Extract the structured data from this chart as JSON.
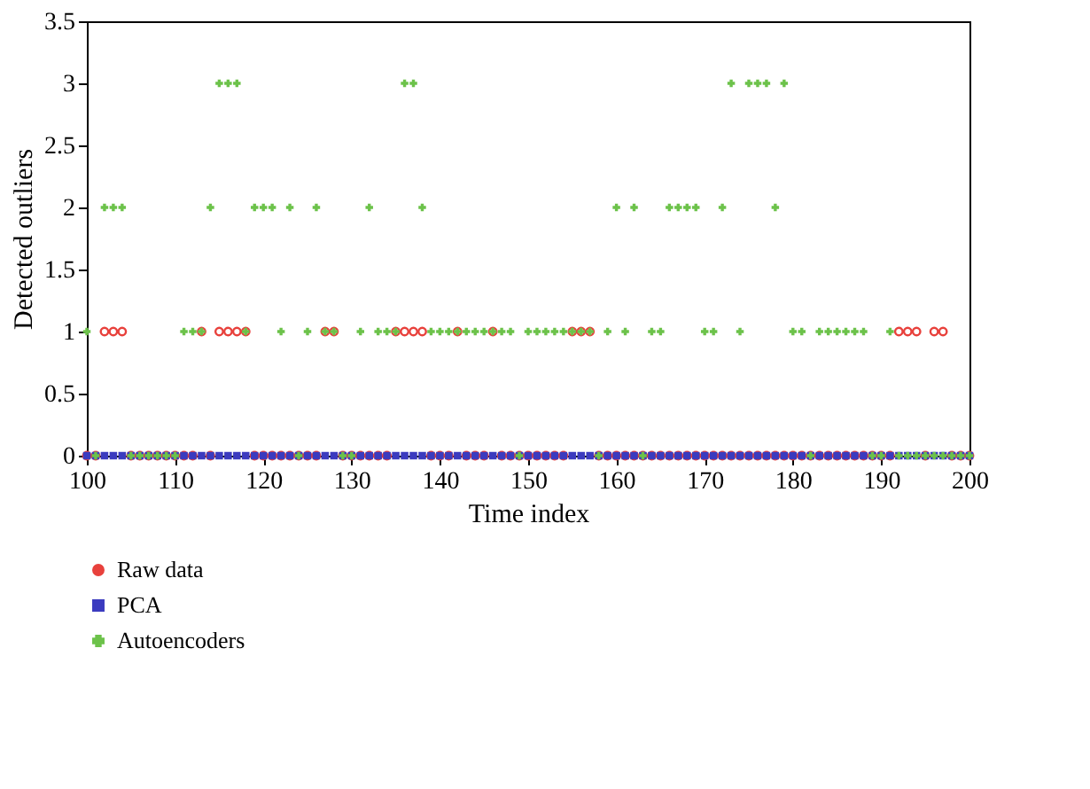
{
  "chart_data": {
    "type": "scatter",
    "xlabel": "Time index",
    "ylabel": "Detected outliers",
    "x": [
      100,
      101,
      102,
      103,
      104,
      105,
      106,
      107,
      108,
      109,
      110,
      111,
      112,
      113,
      114,
      115,
      116,
      117,
      118,
      119,
      120,
      121,
      122,
      123,
      124,
      125,
      126,
      127,
      128,
      129,
      130,
      131,
      132,
      133,
      134,
      135,
      136,
      137,
      138,
      139,
      140,
      141,
      142,
      143,
      144,
      145,
      146,
      147,
      148,
      149,
      150,
      151,
      152,
      153,
      154,
      155,
      156,
      157,
      158,
      159,
      160,
      161,
      162,
      163,
      164,
      165,
      166,
      167,
      168,
      169,
      170,
      171,
      172,
      173,
      174,
      175,
      176,
      177,
      178,
      179,
      180,
      181,
      182,
      183,
      184,
      185,
      186,
      187,
      188,
      189,
      190,
      191,
      192,
      193,
      194,
      195,
      196,
      197,
      198,
      199,
      200
    ],
    "series": [
      {
        "name": "Raw data",
        "color": "#e8413c",
        "marker": "circle",
        "values": [
          0,
          0,
          1,
          1,
          1,
          0,
          0,
          0,
          0,
          0,
          0,
          0,
          0,
          1,
          0,
          1,
          1,
          1,
          1,
          0,
          0,
          0,
          0,
          0,
          0,
          0,
          0,
          1,
          1,
          0,
          0,
          0,
          0,
          0,
          0,
          1,
          1,
          1,
          1,
          0,
          0,
          0,
          1,
          0,
          0,
          0,
          1,
          0,
          0,
          0,
          0,
          0,
          0,
          0,
          0,
          1,
          1,
          1,
          0,
          0,
          0,
          0,
          0,
          0,
          0,
          0,
          0,
          0,
          0,
          0,
          0,
          0,
          0,
          0,
          0,
          0,
          0,
          0,
          0,
          0,
          0,
          0,
          0,
          0,
          0,
          0,
          0,
          0,
          0,
          0,
          0,
          0,
          1,
          1,
          1,
          0,
          1,
          1,
          0,
          0,
          0
        ]
      },
      {
        "name": "PCA",
        "color": "#3b3bbf",
        "marker": "square",
        "values": [
          0,
          0,
          0,
          0,
          0,
          0,
          0,
          0,
          0,
          0,
          0,
          0,
          0,
          0,
          0,
          0,
          0,
          0,
          0,
          0,
          0,
          0,
          0,
          0,
          0,
          0,
          0,
          0,
          0,
          0,
          0,
          0,
          0,
          0,
          0,
          0,
          0,
          0,
          0,
          0,
          0,
          0,
          0,
          0,
          0,
          0,
          0,
          0,
          0,
          0,
          0,
          0,
          0,
          0,
          0,
          0,
          0,
          0,
          0,
          0,
          0,
          0,
          0,
          0,
          0,
          0,
          0,
          0,
          0,
          0,
          0,
          0,
          0,
          0,
          0,
          0,
          0,
          0,
          0,
          0,
          0,
          0,
          0,
          0,
          0,
          0,
          0,
          0,
          0,
          0,
          0,
          0,
          0,
          0,
          0,
          0,
          0,
          0,
          0,
          0,
          0
        ]
      },
      {
        "name": "Autoencoders",
        "color": "#6cc24a",
        "marker": "cross",
        "values": [
          1,
          0,
          2,
          2,
          2,
          0,
          0,
          0,
          0,
          0,
          0,
          1,
          1,
          1,
          2,
          3,
          3,
          3,
          1,
          2,
          2,
          2,
          1,
          2,
          0,
          1,
          2,
          1,
          1,
          0,
          0,
          1,
          2,
          1,
          1,
          1,
          3,
          3,
          2,
          1,
          1,
          1,
          1,
          1,
          1,
          1,
          1,
          1,
          1,
          0,
          1,
          1,
          1,
          1,
          1,
          1,
          1,
          1,
          0,
          1,
          2,
          1,
          2,
          0,
          1,
          1,
          2,
          2,
          2,
          2,
          1,
          1,
          2,
          3,
          1,
          3,
          3,
          3,
          2,
          3,
          1,
          1,
          0,
          1,
          1,
          1,
          1,
          1,
          1,
          0,
          0,
          1,
          0,
          0,
          0,
          0,
          0,
          0,
          0,
          0,
          0
        ]
      }
    ],
    "xlim": [
      100,
      200
    ],
    "xticks": [
      100,
      110,
      120,
      130,
      140,
      150,
      160,
      170,
      180,
      190,
      200
    ],
    "ylim": [
      0,
      3.5
    ],
    "yticks": [
      0,
      0.5,
      1,
      1.5,
      2,
      2.5,
      3,
      3.5
    ],
    "grid": false,
    "legend": "bottom"
  }
}
